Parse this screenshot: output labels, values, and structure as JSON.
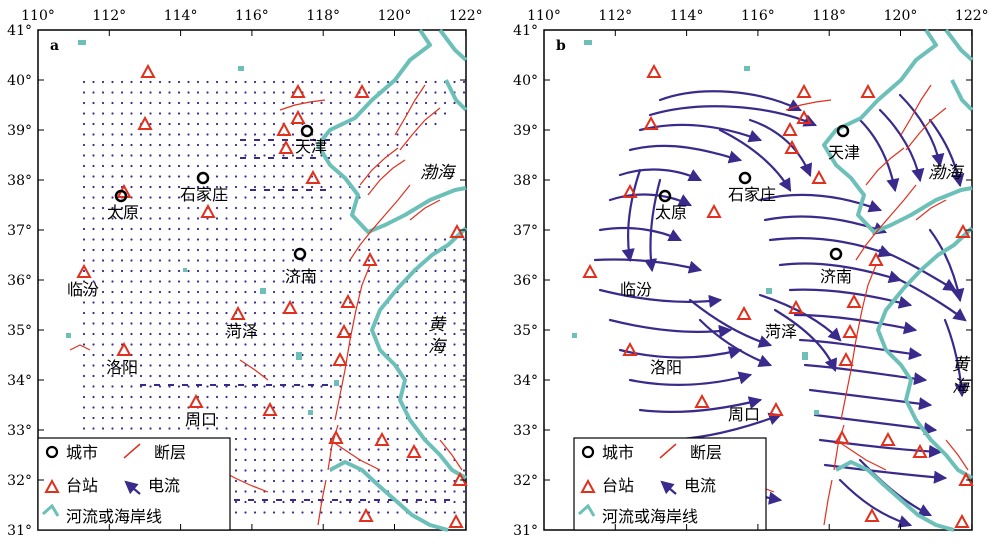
{
  "lon_ticks": [
    "110°",
    "112°",
    "114°",
    "116°",
    "118°",
    "120°",
    "122°"
  ],
  "lat_ticks": [
    "41°",
    "40°",
    "39°",
    "38°",
    "37°",
    "36°",
    "35°",
    "34°",
    "33°",
    "32°",
    "31°"
  ],
  "colors": {
    "frame": "#000000",
    "coast": "#6cc0b8",
    "fault": "#e0301e",
    "station": "#e0301e",
    "current": "#3a2a8c",
    "city": "#000000"
  },
  "panels": [
    {
      "id": "a",
      "letter": "a",
      "kind": "vector-field"
    },
    {
      "id": "b",
      "letter": "b",
      "kind": "streamlines"
    }
  ],
  "cities": [
    "天津",
    "石家庄",
    "太原",
    "济南",
    "临汾",
    "菏泽",
    "洛阳",
    "周口"
  ],
  "seas": [
    "渤海",
    "黄",
    "海"
  ],
  "legend": {
    "city": "城市",
    "fault": "断层",
    "station": "台站",
    "current": "电流",
    "coast": "河流或海岸线"
  }
}
